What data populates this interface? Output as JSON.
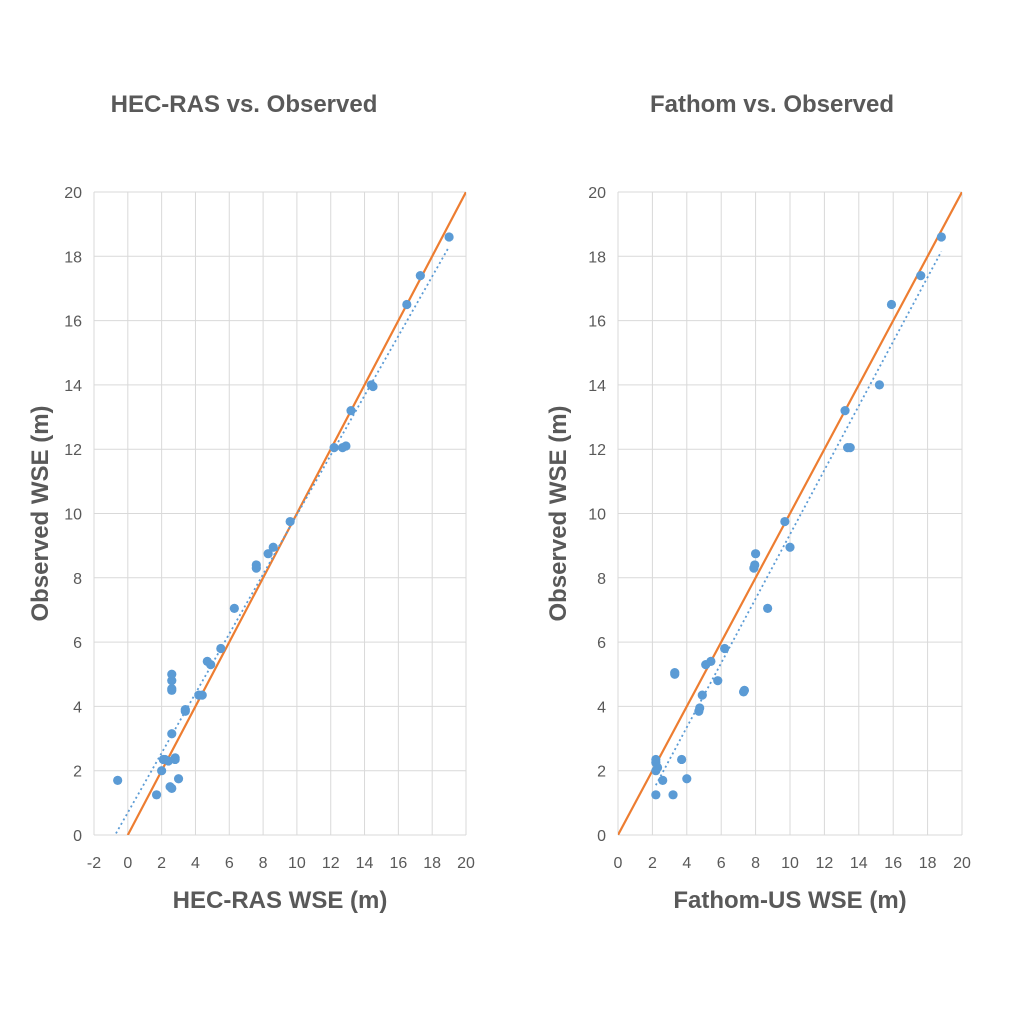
{
  "chart_data": [
    {
      "type": "scatter",
      "title": "HEC-RAS vs. Observed",
      "xlabel": "HEC-RAS WSE (m)",
      "ylabel": "Observed WSE (m)",
      "xlim": [
        -2,
        20
      ],
      "ylim": [
        0,
        20
      ],
      "xticks": [
        "-2",
        "0",
        "2",
        "4",
        "6",
        "8",
        "10",
        "12",
        "14",
        "16",
        "18",
        "20"
      ],
      "yticks": [
        "0",
        "2",
        "4",
        "6",
        "8",
        "10",
        "12",
        "14",
        "16",
        "18",
        "20"
      ],
      "grid": true,
      "colors": {
        "points": "#5b9bd5",
        "one_to_one": "#ed7d31",
        "trendline": "#5b9bd5"
      },
      "one_to_one_line": {
        "x": [
          0,
          20
        ],
        "y": [
          0,
          20
        ]
      },
      "trendline": {
        "x": [
          -0.7,
          19
        ],
        "y": [
          0.05,
          18.3
        ]
      },
      "series": [
        {
          "x": [
            -0.6,
            1.7,
            2.0,
            2.1,
            2.2,
            2.4,
            2.5,
            2.6,
            2.6,
            2.6,
            2.6,
            2.6,
            2.6,
            2.8,
            2.8,
            3.0,
            3.4,
            3.4,
            4.2,
            4.4,
            4.7,
            4.9,
            5.5,
            6.3,
            7.6,
            7.6,
            8.3,
            8.6,
            9.6,
            12.2,
            12.7,
            12.9,
            13.2,
            14.4,
            14.5,
            16.5,
            17.3,
            19.0
          ],
          "y": [
            1.7,
            1.25,
            2.0,
            2.35,
            2.35,
            2.3,
            1.5,
            1.45,
            3.15,
            4.5,
            4.55,
            4.8,
            5.0,
            2.4,
            2.35,
            1.75,
            3.85,
            3.9,
            4.35,
            4.35,
            5.4,
            5.3,
            5.8,
            7.05,
            8.3,
            8.4,
            8.75,
            8.95,
            9.75,
            12.05,
            12.05,
            12.1,
            13.2,
            14.0,
            13.95,
            16.5,
            17.4,
            18.6
          ]
        }
      ]
    },
    {
      "type": "scatter",
      "title": "Fathom vs. Observed",
      "xlabel": "Fathom-US WSE (m)",
      "ylabel": "Observed WSE (m)",
      "xlim": [
        0,
        20
      ],
      "ylim": [
        0,
        20
      ],
      "xticks": [
        "0",
        "2",
        "4",
        "6",
        "8",
        "10",
        "12",
        "14",
        "16",
        "18",
        "20"
      ],
      "yticks": [
        "0",
        "2",
        "4",
        "6",
        "8",
        "10",
        "12",
        "14",
        "16",
        "18",
        "20"
      ],
      "grid": true,
      "colors": {
        "points": "#5b9bd5",
        "one_to_one": "#ed7d31",
        "trendline": "#5b9bd5"
      },
      "one_to_one_line": {
        "x": [
          0,
          20
        ],
        "y": [
          0,
          20
        ]
      },
      "trendline": {
        "x": [
          2.2,
          18.8
        ],
        "y": [
          1.55,
          18.15
        ]
      },
      "series": [
        {
          "x": [
            2.2,
            2.2,
            2.2,
            2.2,
            2.3,
            2.6,
            3.2,
            3.3,
            3.3,
            3.7,
            4.0,
            4.7,
            4.75,
            4.9,
            5.1,
            5.4,
            5.8,
            6.2,
            7.3,
            7.35,
            7.9,
            7.95,
            8.0,
            8.7,
            9.7,
            10.0,
            13.2,
            13.35,
            13.5,
            15.2,
            15.9,
            17.6,
            18.8
          ],
          "y": [
            1.25,
            2.0,
            2.25,
            2.35,
            2.1,
            1.7,
            1.25,
            5.0,
            5.05,
            2.35,
            1.75,
            3.85,
            3.95,
            4.35,
            5.3,
            5.4,
            4.8,
            5.8,
            4.45,
            4.5,
            8.3,
            8.4,
            8.75,
            7.05,
            9.75,
            8.95,
            13.2,
            12.05,
            12.05,
            14.0,
            16.5,
            17.4,
            18.6
          ]
        }
      ]
    }
  ]
}
